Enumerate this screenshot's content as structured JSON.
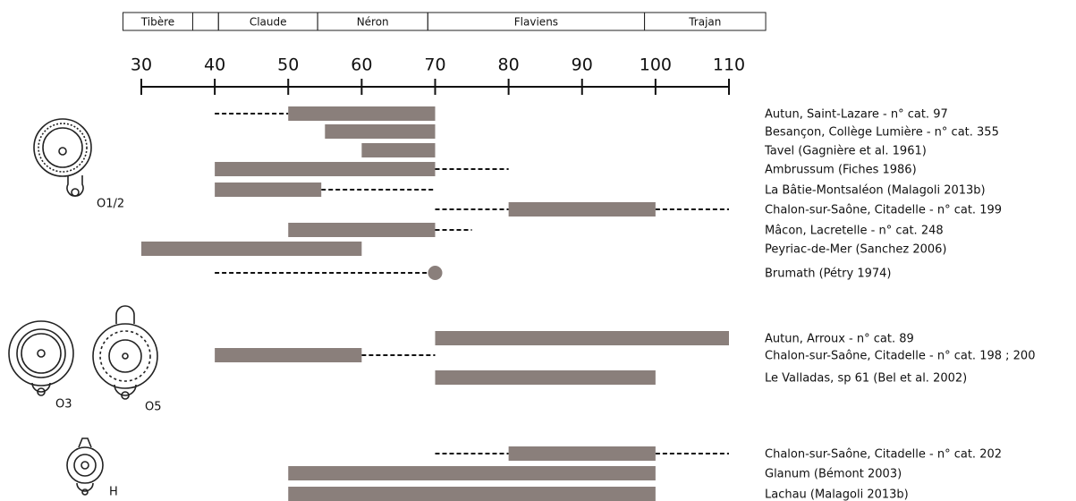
{
  "chart_data": {
    "type": "gantt",
    "periods": [
      {
        "label": "Tibère",
        "range": [
          27.5,
          37
        ]
      },
      {
        "label": null,
        "range": [
          37,
          40.5
        ]
      },
      {
        "label": "Claude",
        "range": [
          40.5,
          54
        ]
      },
      {
        "label": "Néron",
        "range": [
          54,
          69
        ]
      },
      {
        "label": "Flaviens",
        "range": [
          69,
          98.5
        ]
      },
      {
        "label": "Trajan",
        "range": [
          98.5,
          115
        ]
      }
    ],
    "xlim": [
      30,
      110
    ],
    "xticks": [
      30,
      40,
      50,
      60,
      70,
      80,
      90,
      100,
      110
    ],
    "color": "#8a7f7b",
    "lamp_types": [
      "O1/2",
      "O3",
      "O5",
      "H"
    ],
    "rows": [
      {
        "label": "Autun, Saint-Lazare - n° cat. 97",
        "solid": [
          50,
          70
        ],
        "dashed": [
          [
            40,
            50
          ]
        ]
      },
      {
        "label": "Besançon, Collège Lumière - n° cat. 355",
        "solid": [
          55,
          70
        ],
        "dashed": []
      },
      {
        "label": "Tavel (Gagnière et al. 1961)",
        "solid": [
          60,
          70
        ],
        "dashed": []
      },
      {
        "label": "Ambrussum (Fiches 1986)",
        "solid": [
          40,
          70
        ],
        "dashed": [
          [
            70,
            80
          ]
        ]
      },
      {
        "label": "La Bâtie-Montsaléon (Malagoli 2013b)",
        "solid": [
          40,
          54.5
        ],
        "dashed": [
          [
            54.5,
            70
          ]
        ]
      },
      {
        "label": "Chalon-sur-Saône, Citadelle - n° cat. 199",
        "solid": [
          80,
          100
        ],
        "dashed": [
          [
            70,
            80
          ],
          [
            100,
            110
          ]
        ]
      },
      {
        "label": "Mâcon, Lacretelle - n° cat. 248",
        "solid": [
          50,
          70
        ],
        "dashed": [
          [
            70,
            75
          ]
        ]
      },
      {
        "label": "Peyriac-de-Mer (Sanchez 2006)",
        "solid": [
          30,
          60
        ],
        "dashed": []
      },
      {
        "label": "Brumath (Pétry 1974)",
        "point": 70,
        "dashed": [
          [
            40,
            70
          ]
        ]
      },
      {
        "label": "Autun, Arroux - n° cat. 89",
        "solid": [
          70,
          110
        ],
        "dashed": []
      },
      {
        "label": "Chalon-sur-Saône, Citadelle - n° cat. 198 ; 200",
        "solid": [
          40,
          60
        ],
        "dashed": [
          [
            60,
            70
          ]
        ]
      },
      {
        "label": "Le Valladas, sp 61 (Bel et al. 2002)",
        "solid": [
          70,
          100
        ],
        "dashed": []
      },
      {
        "label": "Chalon-sur-Saône, Citadelle - n° cat. 202",
        "solid": [
          80,
          100
        ],
        "dashed": [
          [
            70,
            80
          ],
          [
            100,
            110
          ]
        ]
      },
      {
        "label": "Glanum (Bémont 2003)",
        "solid": [
          50,
          100
        ],
        "dashed": []
      },
      {
        "label": "Lachau (Malagoli 2013b)",
        "solid": [
          50,
          100
        ],
        "dashed": []
      }
    ]
  }
}
